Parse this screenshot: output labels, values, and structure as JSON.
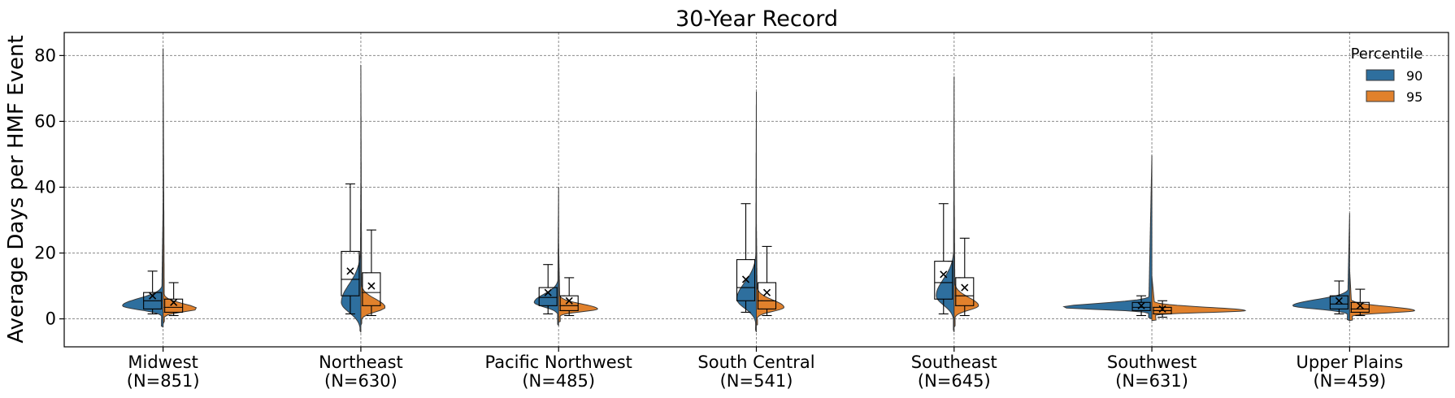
{
  "chart_data": {
    "type": "violin",
    "title": "30-Year Record",
    "ylabel": "Average Days per HMF Event",
    "xlabel": "",
    "ylim": [
      -8.5,
      87
    ],
    "yticks": [
      0,
      20,
      40,
      60,
      80
    ],
    "grid": true,
    "legend": {
      "title": "Percentile",
      "placement": "top-right"
    },
    "categories": [
      "Midwest\n(N=851)",
      "Northeast\n(N=630)",
      "Pacific Northwest\n(N=485)",
      "South Central\n(N=541)",
      "Southeast\n(N=645)",
      "Southwest\n(N=631)",
      "Upper Plains\n(N=459)"
    ],
    "series": [
      {
        "name": "90",
        "color": "#2e6f9e",
        "violins": [
          {
            "min": -2.5,
            "max": 35,
            "mode": 4,
            "spread": 2.2,
            "maxwidth": 50
          },
          {
            "min": -4,
            "max": 41,
            "mode": 5,
            "spread": 5.5,
            "maxwidth": 24
          },
          {
            "min": -2,
            "max": 40,
            "mode": 5,
            "spread": 2.5,
            "maxwidth": 30
          },
          {
            "min": -4,
            "max": 69,
            "mode": 6,
            "spread": 5,
            "maxwidth": 24
          },
          {
            "min": -4,
            "max": 73.5,
            "mode": 7,
            "spread": 5,
            "maxwidth": 22
          },
          {
            "min": 0,
            "max": 49.5,
            "mode": 3.5,
            "spread": 1.2,
            "maxwidth": 110
          },
          {
            "min": -0.5,
            "max": 32,
            "mode": 4,
            "spread": 1.8,
            "maxwidth": 70
          }
        ],
        "box": [
          {
            "q1": 3,
            "median": 5.5,
            "q3": 8,
            "whislo": 1.5,
            "whishi": 14.5,
            "mean": 7
          },
          {
            "q1": 7,
            "median": 12,
            "q3": 20.5,
            "whislo": 1.5,
            "whishi": 41,
            "mean": 14.5
          },
          {
            "q1": 4,
            "median": 6.5,
            "q3": 9.5,
            "whislo": 1.5,
            "whishi": 16.5,
            "mean": 8
          },
          {
            "q1": 5.5,
            "median": 9.5,
            "q3": 18,
            "whislo": 2,
            "whishi": 35,
            "mean": 12
          },
          {
            "q1": 6,
            "median": 11,
            "q3": 17.5,
            "whislo": 1.5,
            "whishi": 35,
            "mean": 13.5
          },
          {
            "q1": 2.5,
            "median": 3.5,
            "q3": 5,
            "whislo": 1,
            "whishi": 7,
            "mean": 4
          },
          {
            "q1": 3,
            "median": 4.5,
            "q3": 7,
            "whislo": 1.5,
            "whishi": 11.5,
            "mean": 5.5
          }
        ]
      },
      {
        "name": "95",
        "color": "#e1812c",
        "violins": [
          {
            "min": -1.5,
            "max": 82,
            "mode": 3,
            "spread": 1.6,
            "maxwidth": 42
          },
          {
            "min": -2,
            "max": 77,
            "mode": 3.5,
            "spread": 2.5,
            "maxwidth": 30
          },
          {
            "min": -1,
            "max": 23,
            "mode": 3,
            "spread": 1.5,
            "maxwidth": 48
          },
          {
            "min": -2,
            "max": 30,
            "mode": 3.5,
            "spread": 2.2,
            "maxwidth": 34
          },
          {
            "min": -2.5,
            "max": 45,
            "mode": 4,
            "spread": 2.5,
            "maxwidth": 30
          },
          {
            "min": -0.5,
            "max": 13,
            "mode": 2.5,
            "spread": 1,
            "maxwidth": 115
          },
          {
            "min": -0.5,
            "max": 15,
            "mode": 2.5,
            "spread": 1.2,
            "maxwidth": 80
          }
        ],
        "box": [
          {
            "q1": 2,
            "median": 3.5,
            "q3": 6,
            "whislo": 1,
            "whishi": 11,
            "mean": 5
          },
          {
            "q1": 4,
            "median": 8,
            "q3": 14,
            "whislo": 1,
            "whishi": 27,
            "mean": 10
          },
          {
            "q1": 2.5,
            "median": 4,
            "q3": 7,
            "whislo": 1,
            "whishi": 12.5,
            "mean": 5.5
          },
          {
            "q1": 3,
            "median": 5.5,
            "q3": 11,
            "whislo": 1,
            "whishi": 22,
            "mean": 8
          },
          {
            "q1": 4,
            "median": 7,
            "q3": 12.5,
            "whislo": 1,
            "whishi": 24.5,
            "mean": 9.5
          },
          {
            "q1": 1.5,
            "median": 2.5,
            "q3": 3.5,
            "whislo": 0.5,
            "whishi": 5.5,
            "mean": 3
          },
          {
            "q1": 2,
            "median": 3,
            "q3": 5,
            "whislo": 1,
            "whishi": 9,
            "mean": 4
          }
        ]
      }
    ]
  }
}
